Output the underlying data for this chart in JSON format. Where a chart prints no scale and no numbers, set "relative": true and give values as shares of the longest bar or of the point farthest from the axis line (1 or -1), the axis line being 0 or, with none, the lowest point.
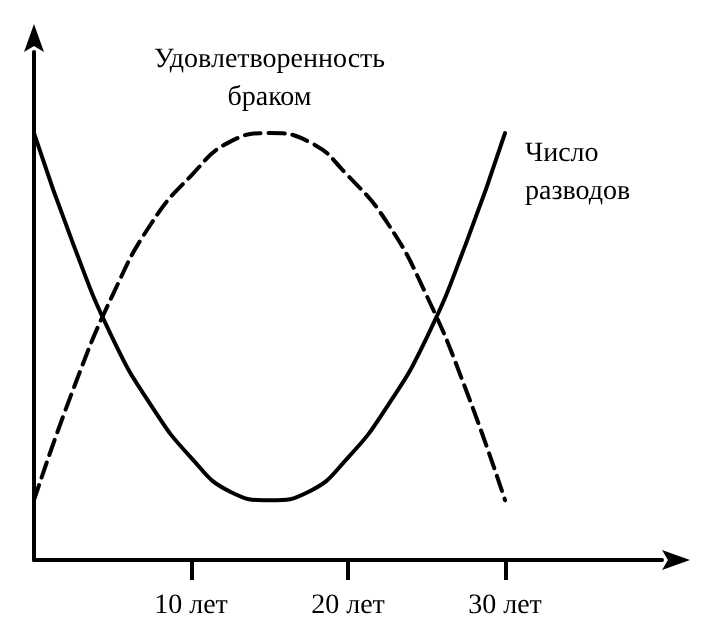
{
  "chart_data": {
    "type": "line",
    "relative": true,
    "x": [
      0,
      2.5,
      5,
      7.5,
      10,
      12.5,
      15,
      17.5,
      20,
      22.5,
      25,
      27.5,
      30
    ],
    "series": [
      {
        "name": "Число разводов",
        "color": "#000000",
        "line_style": "solid",
        "values": [
          1.0,
          0.74,
          0.52,
          0.36,
          0.24,
          0.16,
          0.14,
          0.16,
          0.24,
          0.36,
          0.52,
          0.74,
          1.0
        ]
      },
      {
        "name": "Удовлетворенность браком",
        "color": "#000000",
        "line_style": "dashed",
        "values": [
          0.14,
          0.4,
          0.62,
          0.79,
          0.9,
          0.98,
          1.0,
          0.98,
          0.9,
          0.79,
          0.62,
          0.4,
          0.14
        ]
      }
    ],
    "xlim": [
      0,
      40
    ],
    "xticks": [
      {
        "value": 10,
        "label": "10 лет"
      },
      {
        "value": 20,
        "label": "20 лет"
      },
      {
        "value": 30,
        "label": "30 лет"
      }
    ],
    "grid": false,
    "legend": false,
    "marker": "none"
  }
}
